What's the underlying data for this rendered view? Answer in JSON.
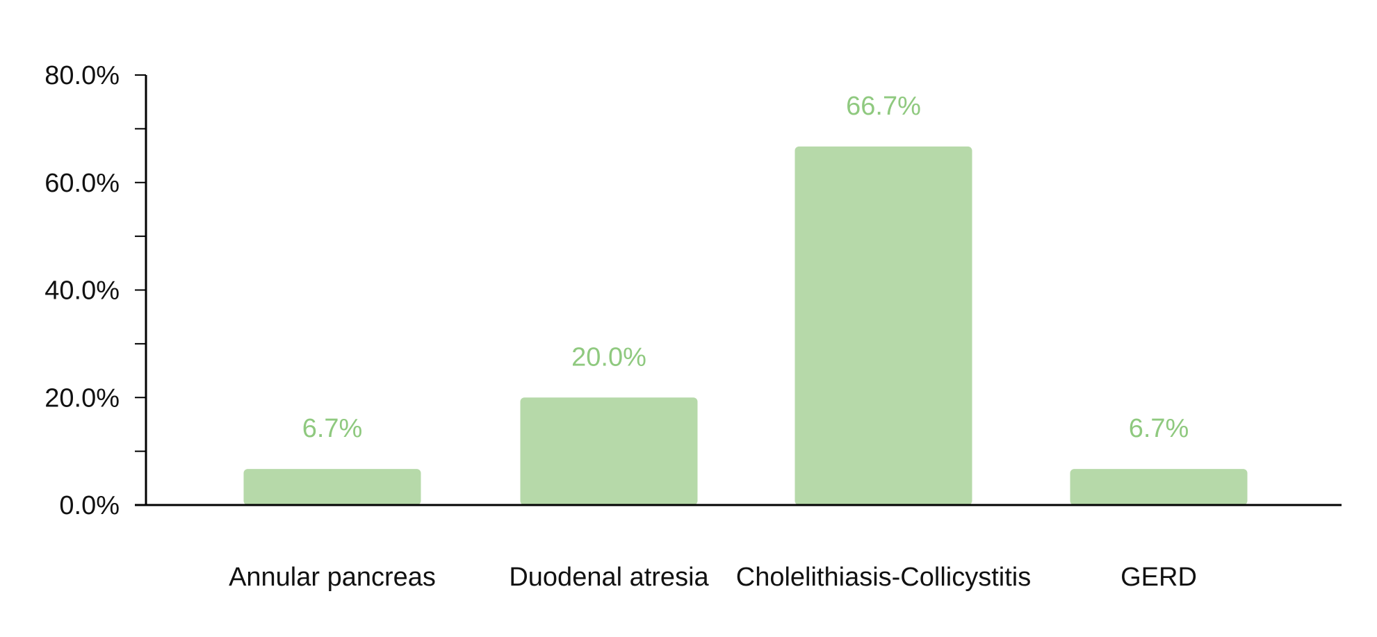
{
  "chart_data": {
    "type": "bar",
    "categories": [
      "Annular pancreas",
      "Duodenal atresia",
      "Cholelithiasis-Collicystitis",
      "GERD"
    ],
    "values": [
      6.7,
      20.0,
      66.7,
      6.7
    ],
    "data_labels": [
      "6.7%",
      "20.0%",
      "66.7%",
      "6.7%"
    ],
    "y_ticks": [
      0,
      20,
      40,
      60,
      80
    ],
    "y_tick_labels": [
      "0.0%",
      "20.0%",
      "40.0%",
      "60.0%",
      "80.0%"
    ],
    "ylim": [
      0,
      80
    ],
    "grid": false,
    "legend": "none",
    "colors": {
      "bar": "#b6d9a9",
      "data_label": "#8fc97f",
      "axis": "#000000"
    }
  }
}
